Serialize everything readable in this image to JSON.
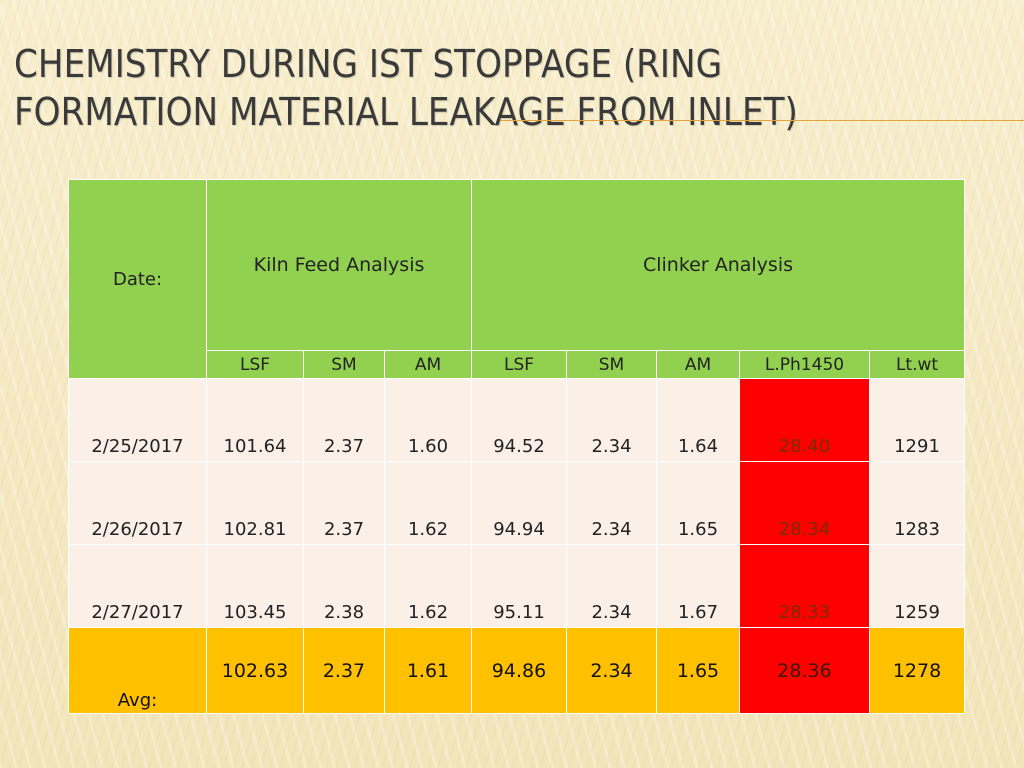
{
  "title": {
    "line1": "CHEMISTRY DURING IST STOPPAGE (RING",
    "line2": "FORMATION MATERIAL LEAKAGE FROM INLET)"
  },
  "table": {
    "date_header": "Date:",
    "group_kiln": "Kiln Feed Analysis",
    "group_clinker": "Clinker Analysis",
    "columns": [
      "LSF",
      "SM",
      "AM",
      "LSF",
      "SM",
      "AM",
      "L.Ph1450",
      "Lt.wt"
    ],
    "rows": [
      {
        "date": "2/25/2017",
        "values": [
          "101.64",
          "2.37",
          "1.60",
          "94.52",
          "2.34",
          "1.64",
          "28.40",
          "1291"
        ]
      },
      {
        "date": "2/26/2017",
        "values": [
          "102.81",
          "2.37",
          "1.62",
          "94.94",
          "2.34",
          "1.65",
          "28.34",
          "1283"
        ]
      },
      {
        "date": "2/27/2017",
        "values": [
          "103.45",
          "2.38",
          "1.62",
          "95.11",
          "2.34",
          "1.67",
          "28.33",
          "1259"
        ]
      }
    ],
    "avg_label": "Avg:",
    "avg_values": [
      "102.63",
      "2.37",
      "1.61",
      "94.86",
      "2.34",
      "1.65",
      "28.36",
      "1278"
    ]
  },
  "colors": {
    "header_green": "#92d050",
    "highlight_red": "#ff0000",
    "avg_orange": "#ffc000",
    "row_bg": "#faf0e8"
  }
}
